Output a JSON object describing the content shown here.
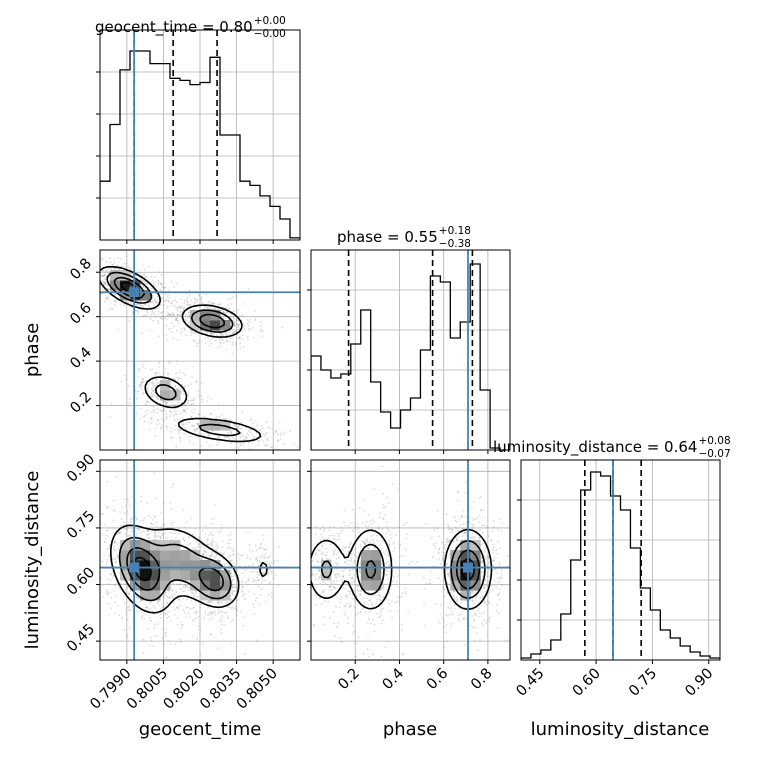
{
  "chart_data": {
    "type": "corner",
    "parameters": [
      "geocent_time",
      "phase",
      "luminosity_distance"
    ],
    "truths": {
      "geocent_time": 0.7993,
      "phase": 0.71,
      "luminosity_distance": 0.645
    },
    "titles": [
      {
        "main": "geocent_time = 0.80",
        "plus": "+0.00",
        "minus": "−0.00"
      },
      {
        "main": "phase = 0.55",
        "plus": "+0.18",
        "minus": "−0.38"
      },
      {
        "main": "luminosity_distance = 0.64",
        "plus": "+0.08",
        "minus": "−0.07"
      }
    ],
    "axes": {
      "geocent_time": {
        "range": [
          0.7979,
          0.8061
        ],
        "ticks": [
          0.799,
          0.8005,
          0.802,
          0.8035,
          0.805
        ],
        "tick_labels": [
          "0.7990",
          "0.8005",
          "0.8020",
          "0.8035",
          "0.8050"
        ],
        "label": "geocent_time"
      },
      "phase": {
        "range": [
          0.0,
          0.9
        ],
        "ticks": [
          0.2,
          0.4,
          0.6,
          0.8
        ],
        "tick_labels": [
          "0.2",
          "0.4",
          "0.6",
          "0.8"
        ],
        "label": "phase"
      },
      "luminosity_distance": {
        "range": [
          0.4,
          0.93
        ],
        "ticks": [
          0.45,
          0.6,
          0.75,
          0.9
        ],
        "tick_labels": [
          "0.45",
          "0.60",
          "0.75",
          "0.90"
        ],
        "label": "luminosity_distance"
      }
    },
    "histograms": {
      "geocent_time": {
        "bin_edges": [
          0.7979,
          0.79831,
          0.79872,
          0.79913,
          0.79954,
          0.79995,
          0.80036,
          0.80077,
          0.80118,
          0.80159,
          0.802,
          0.80241,
          0.80282,
          0.80323,
          0.80364,
          0.80405,
          0.80446,
          0.80487,
          0.80528,
          0.80569,
          0.8061
        ],
        "counts": [
          0.28,
          0.55,
          0.81,
          0.9,
          0.9,
          0.84,
          0.84,
          0.77,
          0.76,
          0.74,
          0.75,
          0.87,
          0.5,
          0.5,
          0.28,
          0.26,
          0.21,
          0.16,
          0.1,
          0.01
        ],
        "quantiles": [
          0.7993,
          0.8009,
          0.8027
        ]
      },
      "phase": {
        "bin_edges": [
          0.0,
          0.045,
          0.09,
          0.135,
          0.18,
          0.225,
          0.27,
          0.315,
          0.36,
          0.405,
          0.45,
          0.495,
          0.54,
          0.585,
          0.63,
          0.675,
          0.72,
          0.765,
          0.81,
          0.855,
          0.9
        ],
        "counts": [
          0.47,
          0.4,
          0.36,
          0.38,
          0.53,
          0.7,
          0.34,
          0.19,
          0.11,
          0.2,
          0.26,
          0.5,
          0.87,
          0.84,
          0.56,
          0.64,
          0.93,
          0.3,
          0.01,
          0.0
        ],
        "quantiles": [
          0.17,
          0.55,
          0.73
        ]
      },
      "luminosity_distance": {
        "bin_edges": [
          0.4,
          0.4265,
          0.453,
          0.4795,
          0.506,
          0.5325,
          0.559,
          0.5855,
          0.612,
          0.6385,
          0.665,
          0.6915,
          0.718,
          0.7445,
          0.771,
          0.7975,
          0.824,
          0.8505,
          0.877,
          0.9035,
          0.93
        ],
        "counts": [
          0.01,
          0.03,
          0.05,
          0.1,
          0.23,
          0.5,
          0.85,
          0.94,
          0.92,
          0.82,
          0.75,
          0.56,
          0.36,
          0.25,
          0.15,
          0.11,
          0.07,
          0.04,
          0.02,
          0.01
        ],
        "quantiles": [
          0.57,
          0.645,
          0.72
        ]
      }
    },
    "contour_panels": [
      {
        "x": "geocent_time",
        "y": "phase",
        "modes": [
          {
            "mean": [
              0.7991,
              0.73
            ],
            "sigma": [
              0.0006,
              0.045
            ],
            "corr": -0.6,
            "weight": 1.0
          },
          {
            "mean": [
              0.8025,
              0.58
            ],
            "sigma": [
              0.0006,
              0.035
            ],
            "corr": -0.3,
            "weight": 0.85
          },
          {
            "mean": [
              0.8006,
              0.26
            ],
            "sigma": [
              0.0005,
              0.04
            ],
            "corr": -0.3,
            "weight": 0.45
          },
          {
            "mean": [
              0.8028,
              0.09
            ],
            "sigma": [
              0.001,
              0.03
            ],
            "corr": -0.5,
            "weight": 0.45
          }
        ]
      },
      {
        "x": "geocent_time",
        "y": "luminosity_distance",
        "modes": [
          {
            "mean": [
              0.7996,
              0.64
            ],
            "sigma": [
              0.0006,
              0.055
            ],
            "corr": -0.4,
            "weight": 1.0
          },
          {
            "mean": [
              0.8026,
              0.61
            ],
            "sigma": [
              0.0005,
              0.035
            ],
            "corr": -0.2,
            "weight": 0.75
          },
          {
            "mean": [
              0.8012,
              0.66
            ],
            "sigma": [
              0.0008,
              0.05
            ],
            "corr": -0.3,
            "weight": 0.5
          },
          {
            "mean": [
              0.8046,
              0.64
            ],
            "sigma": [
              0.0002,
              0.025
            ],
            "corr": 0.0,
            "weight": 0.15
          }
        ]
      },
      {
        "x": "phase",
        "y": "luminosity_distance",
        "modes": [
          {
            "mean": [
              0.71,
              0.64
            ],
            "sigma": [
              0.05,
              0.05
            ],
            "corr": 0.0,
            "weight": 1.0
          },
          {
            "mean": [
              0.27,
              0.64
            ],
            "sigma": [
              0.05,
              0.055
            ],
            "corr": 0.0,
            "weight": 0.65
          },
          {
            "mean": [
              0.07,
              0.64
            ],
            "sigma": [
              0.05,
              0.05
            ],
            "corr": 0.0,
            "weight": 0.35
          }
        ]
      }
    ],
    "contour_levels": [
      0.11,
      0.32,
      0.6,
      0.86
    ],
    "colors": {
      "truth": "#4682b4",
      "line": "#000000",
      "grid": "#b0b0b0",
      "scatter": "#9a9a9a"
    },
    "grid": true
  }
}
